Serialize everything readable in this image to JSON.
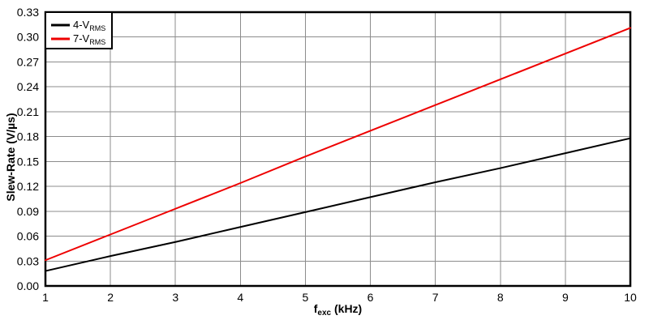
{
  "chart_data": {
    "type": "line",
    "title": "",
    "x": [
      1,
      2,
      3,
      4,
      5,
      6,
      7,
      8,
      9,
      10
    ],
    "series": [
      {
        "name": "4-VRMS",
        "label_main": "4-V",
        "label_sub": "RMS",
        "color": "#000000",
        "values": [
          0.018,
          0.036,
          0.053,
          0.071,
          0.089,
          0.107,
          0.125,
          0.142,
          0.16,
          0.178
        ]
      },
      {
        "name": "7-VRMS",
        "label_main": "7-V",
        "label_sub": "RMS",
        "color": "#ee0000",
        "values": [
          0.031,
          0.062,
          0.093,
          0.124,
          0.156,
          0.187,
          0.218,
          0.249,
          0.28,
          0.311
        ]
      }
    ],
    "xlabel_main": "f",
    "xlabel_sub": "exc",
    "xlabel_unit": " (kHz)",
    "ylabel": "Slew-Rate (V/µs)",
    "xlim": [
      1,
      10
    ],
    "ylim": [
      0,
      0.33
    ],
    "x_ticks": [
      "1",
      "2",
      "3",
      "4",
      "5",
      "6",
      "7",
      "8",
      "9",
      "10"
    ],
    "y_ticks": [
      "0.00",
      "0.03",
      "0.06",
      "0.09",
      "0.12",
      "0.15",
      "0.18",
      "0.21",
      "0.24",
      "0.27",
      "0.30",
      "0.33"
    ],
    "grid": true,
    "legend_position": "top-left",
    "colors": {
      "grid": "#8c8c8c",
      "axis": "#000000",
      "background": "#ffffff"
    }
  }
}
